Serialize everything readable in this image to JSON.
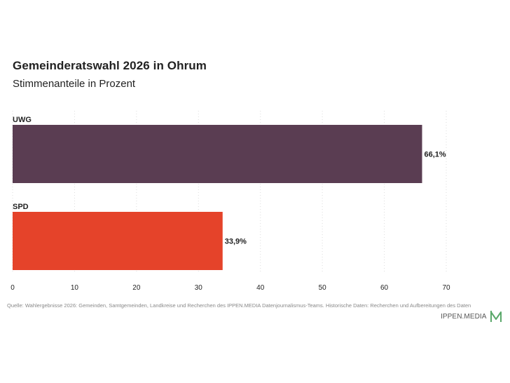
{
  "chart_data": {
    "type": "bar",
    "orientation": "horizontal",
    "title": "Gemeinderatswahl 2026 in Ohrum",
    "subtitle": "Stimmenanteile in Prozent",
    "categories": [
      "UWG",
      "SPD"
    ],
    "values": [
      66.1,
      33.9
    ],
    "value_labels": [
      "66,1%",
      "33,9%"
    ],
    "colors": [
      "#5a3d52",
      "#e5432a"
    ],
    "xlim": [
      0,
      70
    ],
    "xticks": [
      0,
      10,
      20,
      30,
      40,
      50,
      60,
      70
    ],
    "grid": "vertical-dotted",
    "xlabel": "",
    "ylabel": ""
  },
  "footer": {
    "source": "Quelle: Wahlergebnisse 2026: Gemeinden, Samtgemeinden, Landkreise und Recherchen des IPPEN.MEDIA Datenjournalismus-Teams. Historische Daten: Recherchen und Aufbereitungen des Daten",
    "brand": "IPPEN.MEDIA",
    "brand_color": "#5aa86a"
  }
}
